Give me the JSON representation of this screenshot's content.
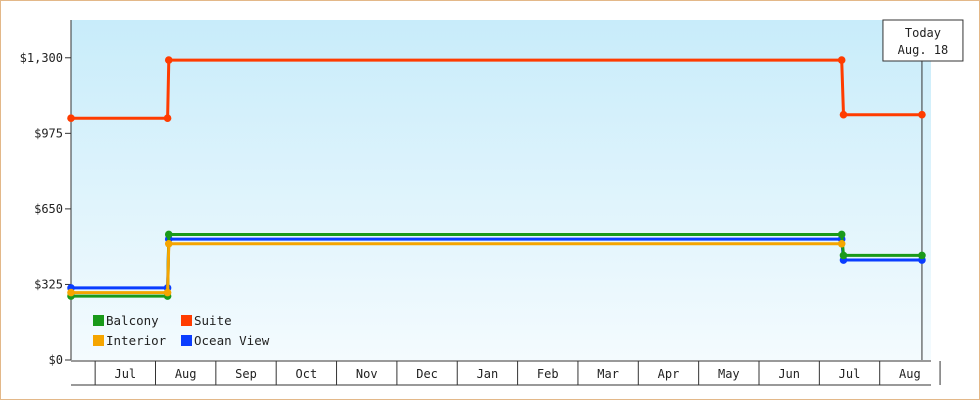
{
  "chart_data": {
    "type": "line",
    "step": true,
    "ylim": [
      0,
      1462.5
    ],
    "y_ticks": [
      {
        "value": 0,
        "label": "$0"
      },
      {
        "value": 325,
        "label": "$325"
      },
      {
        "value": 650,
        "label": "$650"
      },
      {
        "value": 975,
        "label": "$975"
      },
      {
        "value": 1300,
        "label": "$1,300"
      }
    ],
    "x_range": [
      0,
      14.25
    ],
    "x_months": [
      "Jul",
      "Aug",
      "Sep",
      "Oct",
      "Nov",
      "Dec",
      "Jan",
      "Feb",
      "Mar",
      "Apr",
      "May",
      "Jun",
      "Jul",
      "Aug"
    ],
    "grid": false,
    "legend_position": "bottom-left",
    "today_marker": {
      "x": 14.1,
      "line1": "Today",
      "line2": "Aug. 18"
    },
    "series": [
      {
        "name": "Balcony",
        "color": "#1a9a1a",
        "points": [
          [
            0,
            275
          ],
          [
            1.6,
            275
          ],
          [
            1.62,
            540
          ],
          [
            12.77,
            540
          ],
          [
            12.8,
            450
          ],
          [
            14.1,
            450
          ]
        ]
      },
      {
        "name": "Suite",
        "color": "#ff3c00",
        "points": [
          [
            0,
            1040
          ],
          [
            1.6,
            1040
          ],
          [
            1.62,
            1290
          ],
          [
            12.77,
            1290
          ],
          [
            12.8,
            1055
          ],
          [
            14.1,
            1055
          ]
        ]
      },
      {
        "name": "Interior",
        "color": "#f5a500",
        "points": [
          [
            0,
            290
          ],
          [
            1.6,
            290
          ],
          [
            1.62,
            500
          ],
          [
            12.77,
            500
          ]
        ]
      },
      {
        "name": "Ocean View",
        "color": "#0a3dff",
        "points": [
          [
            0,
            310
          ],
          [
            1.6,
            310
          ],
          [
            1.62,
            520
          ],
          [
            12.77,
            520
          ],
          [
            12.8,
            430
          ],
          [
            14.1,
            430
          ]
        ]
      }
    ]
  }
}
